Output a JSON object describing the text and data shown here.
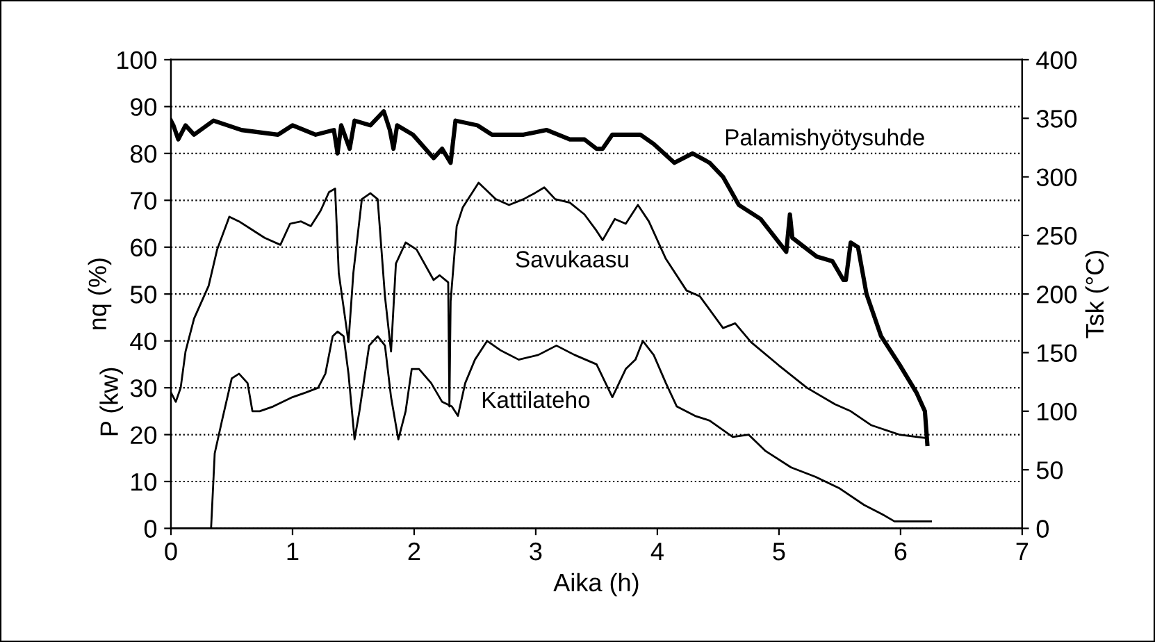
{
  "chart_data": {
    "type": "line",
    "xlabel": "Aika (h)",
    "ylabel": "nq (%)",
    "y2label": "Tsk (°C)",
    "annotations": [
      "P (kw)"
    ],
    "xlim": [
      0,
      7
    ],
    "xticks": [
      0,
      1,
      2,
      3,
      4,
      5,
      6,
      7
    ],
    "ylim": [
      0,
      100
    ],
    "yticks": [
      0,
      10,
      20,
      30,
      40,
      50,
      60,
      70,
      80,
      90,
      100
    ],
    "y2lim": [
      0,
      400
    ],
    "y2ticks": [
      0,
      50,
      100,
      150,
      200,
      250,
      300,
      350,
      400
    ],
    "grid": "y",
    "legend": false,
    "marker": "none",
    "line_style": "solid",
    "series": [
      {
        "name": "Palamishyötysuhde",
        "color": "#000000",
        "axis": "y",
        "x": [
          0,
          0.02,
          0.06,
          0.12,
          0.19,
          0.35,
          0.58,
          0.88,
          1.0,
          1.19,
          1.34,
          1.37,
          1.4,
          1.47,
          1.51,
          1.64,
          1.75,
          1.8,
          1.83,
          1.86,
          1.99,
          2.16,
          2.23,
          2.3,
          2.34,
          2.52,
          2.64,
          2.9,
          3.09,
          3.28,
          3.4,
          3.5,
          3.55,
          3.63,
          3.7,
          3.86,
          3.97,
          4.14,
          4.29,
          4.43,
          4.54,
          4.67,
          4.85,
          5.06,
          5.09,
          5.11,
          5.31,
          5.44,
          5.53,
          5.55,
          5.59,
          5.65,
          5.72,
          5.84,
          5.99,
          6.13,
          6.2,
          6.22
        ],
        "values": [
          87,
          86,
          83,
          86,
          84,
          87,
          85,
          84,
          86,
          84,
          85,
          80,
          86,
          81,
          87,
          86,
          89,
          85,
          81,
          86,
          84,
          79,
          81,
          78,
          87,
          86,
          84,
          84,
          85,
          83,
          83,
          81,
          81,
          84,
          84,
          84,
          82,
          78,
          80,
          78,
          75,
          69,
          66,
          59,
          67,
          62,
          58,
          57,
          53,
          53,
          61,
          60,
          50,
          41,
          35,
          29,
          25,
          18
        ]
      },
      {
        "name": "Savukaasu",
        "color": "#000000",
        "axis": "y2",
        "x": [
          0,
          0.04,
          0.08,
          0.12,
          0.19,
          0.31,
          0.38,
          0.48,
          0.56,
          0.65,
          0.77,
          0.9,
          0.98,
          1.07,
          1.15,
          1.23,
          1.3,
          1.35,
          1.38,
          1.46,
          1.5,
          1.57,
          1.64,
          1.7,
          1.76,
          1.81,
          1.85,
          1.93,
          2.02,
          2.16,
          2.21,
          2.28,
          2.29,
          2.3,
          2.35,
          2.4,
          2.53,
          2.67,
          2.78,
          2.9,
          2.99,
          3.07,
          3.16,
          3.28,
          3.4,
          3.5,
          3.55,
          3.65,
          3.74,
          3.84,
          3.93,
          4.07,
          4.24,
          4.35,
          4.54,
          4.64,
          4.77,
          5.0,
          5.23,
          5.46,
          5.59,
          5.76,
          5.99,
          6.22
        ],
        "values": [
          116,
          108,
          120,
          151,
          179,
          207,
          238,
          266,
          262,
          256,
          248,
          242,
          260,
          262,
          258,
          271,
          287,
          290,
          218,
          159,
          218,
          281,
          286,
          281,
          198,
          151,
          226,
          244,
          238,
          212,
          216,
          210,
          104,
          194,
          258,
          274,
          295,
          281,
          276,
          281,
          286,
          291,
          281,
          278,
          268,
          254,
          246,
          264,
          260,
          276,
          262,
          230,
          203,
          198,
          171,
          175,
          159,
          139,
          120,
          106,
          100,
          88,
          80,
          77
        ]
      },
      {
        "name": "Kattilateho",
        "color": "#000000",
        "axis": "y",
        "x": [
          0,
          0.33,
          0.36,
          0.42,
          0.5,
          0.56,
          0.63,
          0.67,
          0.73,
          0.84,
          1.0,
          1.11,
          1.21,
          1.27,
          1.33,
          1.37,
          1.42,
          1.46,
          1.51,
          1.55,
          1.63,
          1.7,
          1.76,
          1.81,
          1.87,
          1.93,
          1.98,
          2.04,
          2.14,
          2.23,
          2.31,
          2.36,
          2.42,
          2.5,
          2.6,
          2.71,
          2.86,
          3.02,
          3.17,
          3.32,
          3.5,
          3.63,
          3.74,
          3.82,
          3.88,
          3.97,
          4.07,
          4.16,
          4.31,
          4.43,
          4.62,
          4.75,
          4.89,
          5.1,
          5.3,
          5.5,
          5.7,
          5.85,
          5.95,
          6.25
        ],
        "values": [
          0,
          0,
          16,
          23,
          32,
          33,
          31,
          25,
          25,
          26,
          28,
          29,
          30,
          33,
          41,
          42,
          41,
          33,
          19,
          25,
          39,
          41,
          39,
          28,
          19,
          25,
          34,
          34,
          31,
          27,
          26,
          24,
          31,
          36,
          40,
          38,
          36,
          37,
          39,
          37,
          35,
          28,
          34,
          36,
          40,
          37,
          31,
          26,
          24,
          23,
          19.5,
          20,
          16.5,
          13,
          11,
          8.5,
          5,
          3,
          1.5,
          1.5
        ]
      }
    ]
  }
}
